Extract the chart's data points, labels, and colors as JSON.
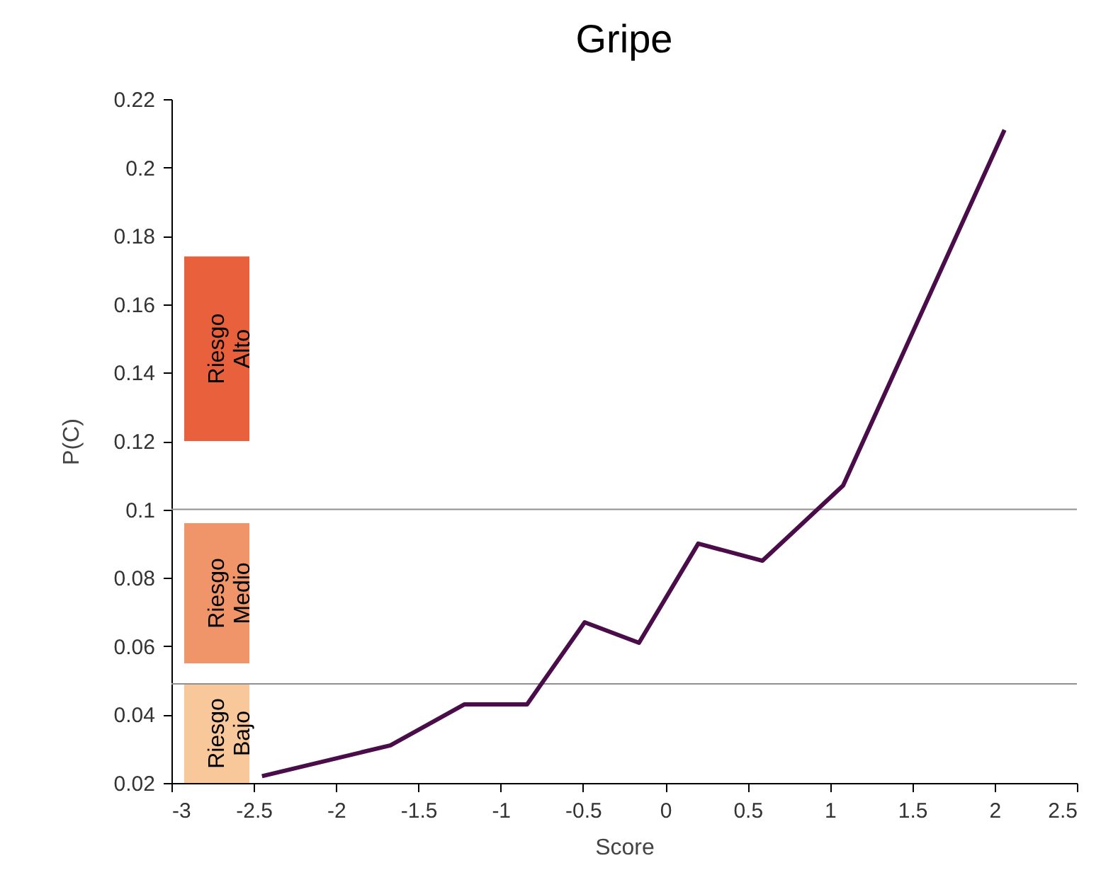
{
  "chart_data": {
    "type": "line",
    "title": "Gripe",
    "xlabel": "Score",
    "ylabel": "P(C)",
    "x": [
      -2.45,
      -1.67,
      -1.22,
      -0.84,
      -0.49,
      -0.16,
      0.2,
      0.59,
      1.08,
      2.06
    ],
    "series": [
      {
        "color": "#4a0d4a",
        "values": [
          0.022,
          0.031,
          0.043,
          0.043,
          0.067,
          0.061,
          0.09,
          0.085,
          0.107,
          0.211
        ]
      }
    ],
    "xlim": [
      -3,
      2.5
    ],
    "xticks": [
      -3,
      -2.5,
      -2,
      -1.5,
      -1,
      -0.5,
      0,
      0.5,
      1,
      1.5,
      2,
      2.5
    ],
    "ylim": [
      0.02,
      0.22
    ],
    "yticks": [
      0.02,
      0.04,
      0.06,
      0.08,
      0.1,
      0.12,
      0.14,
      0.16,
      0.18,
      0.2,
      0.22
    ],
    "ref_lines": [
      {
        "axis": "y",
        "value": 0.1,
        "color": "#909090"
      },
      {
        "axis": "y",
        "value": 0.049,
        "color": "#909090"
      }
    ],
    "bands": [
      {
        "axis": "y",
        "from": 0.12,
        "to": 0.174,
        "label": "Riesgo Alto",
        "color": "#e8603c"
      },
      {
        "axis": "y",
        "from": 0.055,
        "to": 0.096,
        "label": "Riesgo Medio",
        "color": "#f0956a"
      },
      {
        "axis": "y",
        "from": 0.02,
        "to": 0.049,
        "label": "Riesgo Bajo",
        "color": "#f8c79a"
      }
    ],
    "grid": false,
    "marker": "none",
    "line_style": "solid"
  }
}
